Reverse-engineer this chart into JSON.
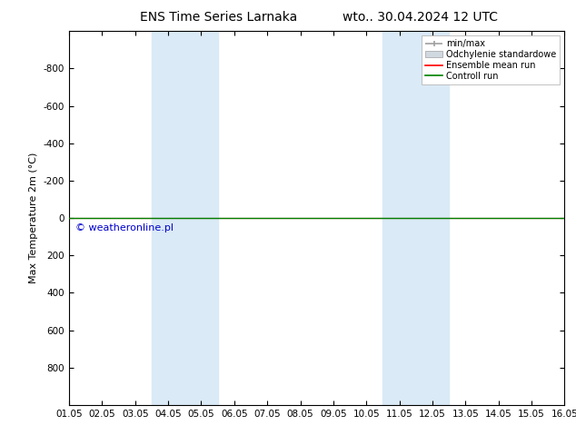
{
  "title_left": "ENS Time Series Larnaka",
  "title_right": "wto.. 30.04.2024 12 UTC",
  "ylabel": "Max Temperature 2m (°C)",
  "ylim": [
    -1000,
    1000
  ],
  "yticks": [
    -800,
    -600,
    -400,
    -200,
    0,
    200,
    400,
    600,
    800
  ],
  "xtick_labels": [
    "01.05",
    "02.05",
    "03.05",
    "04.05",
    "05.05",
    "06.05",
    "07.05",
    "08.05",
    "09.05",
    "10.05",
    "11.05",
    "12.05",
    "13.05",
    "14.05",
    "15.05",
    "16.05"
  ],
  "shaded_bands": [
    {
      "xmin": 3,
      "xmax": 4,
      "color": "#daeaf6"
    },
    {
      "xmin": 4,
      "xmax": 5,
      "color": "#daeaf6"
    },
    {
      "xmin": 10,
      "xmax": 11,
      "color": "#daeaf6"
    },
    {
      "xmin": 11,
      "xmax": 12,
      "color": "#daeaf6"
    }
  ],
  "control_run_y": 0.0,
  "control_run_color": "#008000",
  "ensemble_mean_color": "#ff0000",
  "min_max_color": "#a0a0a0",
  "std_color": "#d0d8e0",
  "std_edge_color": "#a0a0a0",
  "background_color": "#ffffff",
  "plot_bg_color": "#ffffff",
  "copyright_text": "© weatheronline.pl",
  "copyright_color": "#0000cc",
  "legend_entries": [
    "min/max",
    "Odchylenie standardowe",
    "Ensemble mean run",
    "Controll run"
  ],
  "legend_colors": [
    "#a0a0a0",
    "#d0d8e0",
    "#ff0000",
    "#008000"
  ],
  "fontsize_title": 10,
  "fontsize_labels": 8,
  "fontsize_ticks": 7.5,
  "fontsize_legend": 7,
  "fontsize_copyright": 8
}
